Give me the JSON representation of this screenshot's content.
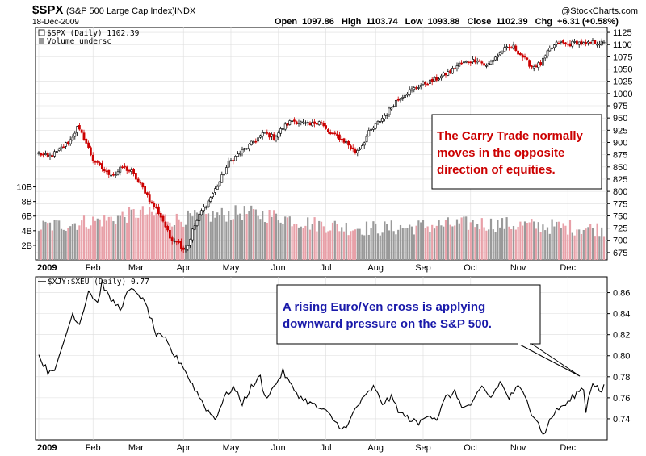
{
  "header": {
    "symbol": "$SPX",
    "full_name": "(S&P 500 Large Cap Index)",
    "exchange": "INDX",
    "brand": "@StockCharts.com",
    "date": "18-Dec-2009",
    "open_label": "Open",
    "open": "1097.86",
    "high_label": "High",
    "high": "1103.74",
    "low_label": "Low",
    "low": "1093.88",
    "close_label": "Close",
    "close": "1102.39",
    "chg_label": "Chg",
    "chg": "+6.31 (+0.58%)"
  },
  "colors": {
    "up": "#000000",
    "down": "#cc0000",
    "vol_up": "#999999",
    "vol_down": "#e8a0a8",
    "red_text": "#cc0000",
    "blue_text": "#1a1aaa"
  },
  "chart_data": [
    {
      "type": "candlestick",
      "title": "$SPX (Daily) 1102.39",
      "legend": [
        "$SPX (Daily) 1102.39",
        "Volume undersc"
      ],
      "ylim": [
        660,
        1135
      ],
      "yticks": [
        675,
        700,
        725,
        750,
        775,
        800,
        825,
        850,
        875,
        900,
        925,
        950,
        975,
        1000,
        1025,
        1050,
        1075,
        1100,
        1125
      ],
      "ytick_labels": [
        "675",
        "700",
        "725",
        "750",
        "775",
        "800",
        "825",
        "850",
        "875",
        "900",
        "925",
        "950",
        "975",
        "1000",
        "1025",
        "1050",
        "1075",
        "1100",
        "1125"
      ],
      "volume_ticks": [
        "2B",
        "4B",
        "6B",
        "8B",
        "10B"
      ],
      "volume_tick_values": [
        2,
        4,
        6,
        8,
        10
      ],
      "months": [
        "2009",
        "Feb",
        "Mar",
        "Apr",
        "May",
        "Jun",
        "Jul",
        "Aug",
        "Sep",
        "Oct",
        "Nov",
        "Dec"
      ],
      "anchors": [
        [
          0,
          878
        ],
        [
          4,
          870
        ],
        [
          8,
          880
        ],
        [
          14,
          905
        ],
        [
          17,
          930
        ],
        [
          20,
          910
        ],
        [
          24,
          865
        ],
        [
          30,
          838
        ],
        [
          34,
          835
        ],
        [
          37,
          850
        ],
        [
          41,
          840
        ],
        [
          47,
          800
        ],
        [
          50,
          775
        ],
        [
          52,
          765
        ],
        [
          55,
          740
        ],
        [
          58,
          705
        ],
        [
          61,
          700
        ],
        [
          64,
          683
        ],
        [
          66,
          690
        ],
        [
          68,
          720
        ],
        [
          72,
          760
        ],
        [
          75,
          780
        ],
        [
          80,
          820
        ],
        [
          84,
          858
        ],
        [
          88,
          875
        ],
        [
          92,
          890
        ],
        [
          96,
          905
        ],
        [
          100,
          920
        ],
        [
          104,
          910
        ],
        [
          108,
          930
        ],
        [
          112,
          945
        ],
        [
          116,
          940
        ],
        [
          120,
          935
        ],
        [
          124,
          945
        ],
        [
          128,
          920
        ],
        [
          132,
          912
        ],
        [
          136,
          900
        ],
        [
          140,
          880
        ],
        [
          143,
          895
        ],
        [
          146,
          920
        ],
        [
          150,
          940
        ],
        [
          154,
          960
        ],
        [
          158,
          985
        ],
        [
          162,
          1000
        ],
        [
          166,
          1010
        ],
        [
          170,
          1020
        ],
        [
          174,
          1025
        ],
        [
          178,
          1035
        ],
        [
          182,
          1045
        ],
        [
          186,
          1060
        ],
        [
          190,
          1065
        ],
        [
          194,
          1070
        ],
        [
          198,
          1055
        ],
        [
          202,
          1075
        ],
        [
          206,
          1090
        ],
        [
          210,
          1095
        ],
        [
          214,
          1075
        ],
        [
          218,
          1055
        ],
        [
          222,
          1060
        ],
        [
          226,
          1090
        ],
        [
          230,
          1105
        ],
        [
          234,
          1100
        ],
        [
          238,
          1105
        ],
        [
          242,
          1100
        ],
        [
          244,
          1103
        ],
        [
          246,
          1105
        ],
        [
          250,
          1102
        ]
      ],
      "volume_anchors": [
        [
          0,
          4.5
        ],
        [
          15,
          5
        ],
        [
          30,
          5.5
        ],
        [
          45,
          6.5
        ],
        [
          60,
          5.5
        ],
        [
          75,
          6
        ],
        [
          90,
          6.5
        ],
        [
          105,
          6
        ],
        [
          120,
          5
        ],
        [
          135,
          4.5
        ],
        [
          150,
          4.3
        ],
        [
          165,
          4.5
        ],
        [
          180,
          4.8
        ],
        [
          195,
          5
        ],
        [
          210,
          4.8
        ],
        [
          225,
          4.6
        ],
        [
          240,
          4.4
        ],
        [
          250,
          4.2
        ]
      ],
      "annotation": "The Carry Trade normally\nmoves in the opposite\ndirection of equities."
    },
    {
      "type": "line",
      "title": "$XJY:$XEU (Daily) 0.77",
      "legend": [
        "$XJY:$XEU (Daily) 0.77"
      ],
      "ylim": [
        0.72,
        0.875
      ],
      "yticks": [
        0.74,
        0.76,
        0.78,
        0.8,
        0.82,
        0.84,
        0.86
      ],
      "ytick_labels": [
        "0.74",
        "0.76",
        "0.78",
        "0.80",
        "0.82",
        "0.84",
        "0.86"
      ],
      "months": [
        "2009",
        "Feb",
        "Mar",
        "Apr",
        "May",
        "Jun",
        "Jul",
        "Aug",
        "Sep",
        "Oct",
        "Nov",
        "Dec"
      ],
      "anchors": [
        [
          0,
          0.8
        ],
        [
          4,
          0.785
        ],
        [
          8,
          0.79
        ],
        [
          12,
          0.82
        ],
        [
          15,
          0.84
        ],
        [
          18,
          0.83
        ],
        [
          22,
          0.862
        ],
        [
          26,
          0.85
        ],
        [
          28,
          0.87
        ],
        [
          31,
          0.855
        ],
        [
          36,
          0.845
        ],
        [
          40,
          0.862
        ],
        [
          44,
          0.86
        ],
        [
          48,
          0.845
        ],
        [
          52,
          0.82
        ],
        [
          56,
          0.815
        ],
        [
          60,
          0.8
        ],
        [
          64,
          0.79
        ],
        [
          66,
          0.78
        ],
        [
          70,
          0.765
        ],
        [
          74,
          0.75
        ],
        [
          78,
          0.74
        ],
        [
          82,
          0.76
        ],
        [
          86,
          0.77
        ],
        [
          90,
          0.755
        ],
        [
          94,
          0.77
        ],
        [
          98,
          0.78
        ],
        [
          100,
          0.76
        ],
        [
          104,
          0.77
        ],
        [
          108,
          0.785
        ],
        [
          112,
          0.77
        ],
        [
          116,
          0.76
        ],
        [
          120,
          0.755
        ],
        [
          124,
          0.75
        ],
        [
          128,
          0.745
        ],
        [
          132,
          0.735
        ],
        [
          136,
          0.73
        ],
        [
          140,
          0.75
        ],
        [
          144,
          0.76
        ],
        [
          148,
          0.77
        ],
        [
          152,
          0.755
        ],
        [
          156,
          0.76
        ],
        [
          160,
          0.745
        ],
        [
          164,
          0.74
        ],
        [
          168,
          0.735
        ],
        [
          172,
          0.745
        ],
        [
          176,
          0.74
        ],
        [
          180,
          0.76
        ],
        [
          184,
          0.765
        ],
        [
          188,
          0.75
        ],
        [
          192,
          0.755
        ],
        [
          196,
          0.77
        ],
        [
          200,
          0.76
        ],
        [
          204,
          0.775
        ],
        [
          208,
          0.76
        ],
        [
          212,
          0.77
        ],
        [
          216,
          0.76
        ],
        [
          218,
          0.745
        ],
        [
          220,
          0.74
        ],
        [
          222,
          0.73
        ],
        [
          224,
          0.725
        ],
        [
          226,
          0.74
        ],
        [
          230,
          0.75
        ],
        [
          234,
          0.755
        ],
        [
          238,
          0.765
        ],
        [
          241,
          0.77
        ],
        [
          242,
          0.745
        ],
        [
          243,
          0.76
        ],
        [
          245,
          0.775
        ],
        [
          247,
          0.77
        ],
        [
          249,
          0.765
        ],
        [
          250,
          0.77
        ]
      ],
      "annotation": "A rising Euro/Yen cross is applying\ndownward pressure on the S&P 500."
    }
  ]
}
